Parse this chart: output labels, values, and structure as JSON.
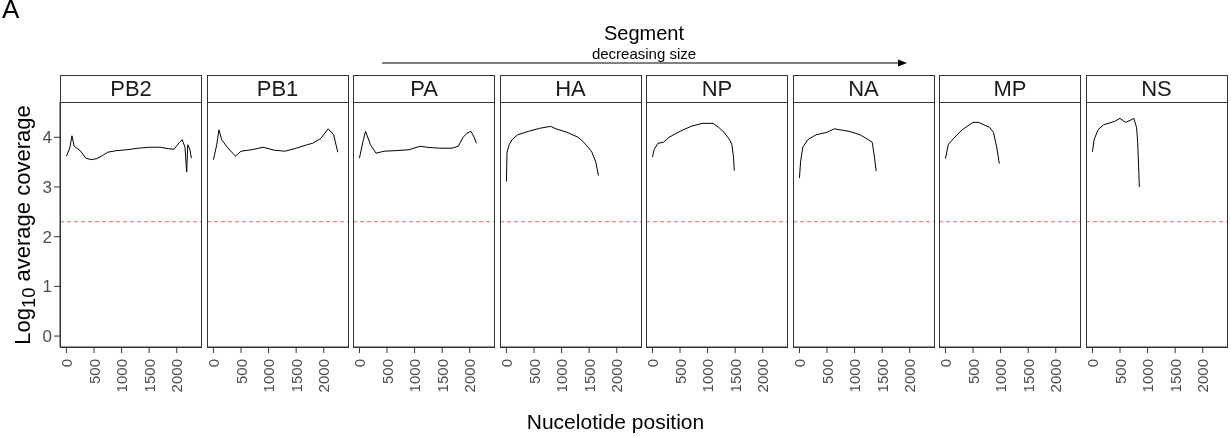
{
  "chart_data": [
    {
      "type": "line",
      "title": "PB2",
      "ylabel": "Log$_{10}$ average coverage",
      "annotations": [
        "A",
        "Segment",
        "decreasing size"
      ],
      "x": [
        0,
        60,
        100,
        140,
        250,
        350,
        450,
        550,
        650,
        750,
        900,
        1100,
        1300,
        1500,
        1700,
        1850,
        1950,
        2050,
        2100,
        2150,
        2180,
        2200,
        2240,
        2265
      ],
      "values": [
        3.62,
        3.78,
        4.03,
        3.82,
        3.73,
        3.58,
        3.55,
        3.57,
        3.63,
        3.7,
        3.73,
        3.75,
        3.78,
        3.8,
        3.8,
        3.77,
        3.76,
        3.9,
        3.95,
        3.8,
        3.3,
        3.85,
        3.75,
        3.58
      ],
      "color": "#000000",
      "xlim": [
        -117,
        2458
      ],
      "ylim": [
        -0.22,
        4.71
      ],
      "xticks": [
        0,
        500,
        1000,
        1500,
        2000
      ],
      "yticks": [
        0,
        1,
        2,
        3,
        4
      ],
      "ref_lines": [
        {
          "axis": "y",
          "value": 2.3,
          "color": "#e8696b",
          "line_style": "dashed"
        }
      ]
    },
    {
      "type": "line",
      "title": "PB1",
      "x": [
        0,
        60,
        100,
        150,
        250,
        400,
        500,
        700,
        900,
        1100,
        1300,
        1500,
        1700,
        1800,
        1950,
        2080,
        2180,
        2254
      ],
      "values": [
        3.55,
        3.85,
        4.15,
        3.95,
        3.8,
        3.62,
        3.72,
        3.75,
        3.8,
        3.74,
        3.72,
        3.78,
        3.85,
        3.88,
        3.98,
        4.17,
        4.05,
        3.7
      ],
      "color": "#000000",
      "xlim": [
        -117,
        2458
      ],
      "ylim": [
        -0.22,
        4.71
      ],
      "xticks": [
        0,
        500,
        1000,
        1500,
        2000
      ],
      "yticks": [
        0,
        1,
        2,
        3,
        4
      ],
      "tick_labels": "x",
      "ref_lines": [
        {
          "axis": "y",
          "value": 2.3,
          "color": "#e8696b",
          "line_style": "dashed"
        }
      ]
    },
    {
      "type": "line",
      "title": "PA",
      "x": [
        0,
        60,
        110,
        200,
        300,
        450,
        643,
        900,
        1100,
        1218,
        1450,
        1678,
        1793,
        1879,
        1950,
        2022,
        2080,
        2121
      ],
      "values": [
        3.58,
        3.9,
        4.12,
        3.85,
        3.68,
        3.72,
        3.73,
        3.75,
        3.82,
        3.8,
        3.78,
        3.78,
        3.82,
        4.0,
        4.08,
        4.12,
        4.0,
        3.88
      ],
      "color": "#000000",
      "xlim": [
        -117,
        2458
      ],
      "ylim": [
        -0.22,
        4.71
      ],
      "xticks": [
        0,
        500,
        1000,
        1500,
        2000
      ],
      "yticks": [
        0,
        1,
        2,
        3,
        4
      ],
      "tick_labels": "x",
      "ref_lines": [
        {
          "axis": "y",
          "value": 2.3,
          "color": "#e8696b",
          "line_style": "dashed"
        }
      ]
    },
    {
      "type": "line",
      "title": "HA",
      "xlabel": "Nucelotide position",
      "x": [
        0,
        10,
        50,
        100,
        200,
        400,
        600,
        800,
        900,
        1100,
        1300,
        1400,
        1480,
        1550,
        1620,
        1668
      ],
      "values": [
        3.11,
        3.7,
        3.85,
        3.95,
        4.05,
        4.12,
        4.18,
        4.22,
        4.17,
        4.1,
        4.0,
        3.9,
        3.8,
        3.7,
        3.5,
        3.23
      ],
      "color": "#000000",
      "xlim": [
        -117,
        2458
      ],
      "ylim": [
        -0.22,
        4.71
      ],
      "xticks": [
        0,
        500,
        1000,
        1500,
        2000
      ],
      "yticks": [
        0,
        1,
        2,
        3,
        4
      ],
      "tick_labels": "x",
      "ref_lines": [
        {
          "axis": "y",
          "value": 2.3,
          "color": "#e8696b",
          "line_style": "dashed"
        }
      ]
    },
    {
      "type": "line",
      "title": "NP",
      "x": [
        0,
        30,
        100,
        200,
        300,
        500,
        700,
        900,
        1100,
        1200,
        1300,
        1400,
        1440,
        1470,
        1484
      ],
      "values": [
        3.6,
        3.75,
        3.88,
        3.9,
        4.0,
        4.12,
        4.22,
        4.28,
        4.28,
        4.2,
        4.1,
        3.95,
        3.85,
        3.6,
        3.33
      ],
      "color": "#000000",
      "xlim": [
        -117,
        2458
      ],
      "ylim": [
        -0.22,
        4.71
      ],
      "xticks": [
        0,
        500,
        1000,
        1500,
        2000
      ],
      "yticks": [
        0,
        1,
        2,
        3,
        4
      ],
      "tick_labels": "x",
      "ref_lines": [
        {
          "axis": "y",
          "value": 2.3,
          "color": "#e8696b",
          "line_style": "dashed"
        }
      ]
    },
    {
      "type": "line",
      "title": "NA",
      "x": [
        0,
        20,
        60,
        150,
        300,
        500,
        630,
        900,
        1100,
        1250,
        1320,
        1360,
        1391
      ],
      "values": [
        3.18,
        3.5,
        3.8,
        3.95,
        4.05,
        4.1,
        4.17,
        4.12,
        4.05,
        3.95,
        3.9,
        3.6,
        3.32
      ],
      "color": "#000000",
      "xlim": [
        -117,
        2458
      ],
      "ylim": [
        -0.22,
        4.71
      ],
      "xticks": [
        0,
        500,
        1000,
        1500,
        2000
      ],
      "yticks": [
        0,
        1,
        2,
        3,
        4
      ],
      "tick_labels": "x",
      "ref_lines": [
        {
          "axis": "y",
          "value": 2.3,
          "color": "#e8696b",
          "line_style": "dashed"
        }
      ]
    },
    {
      "type": "line",
      "title": "MP",
      "x": [
        0,
        50,
        150,
        300,
        500,
        600,
        800,
        870,
        930,
        977
      ],
      "values": [
        3.57,
        3.85,
        3.98,
        4.15,
        4.3,
        4.3,
        4.2,
        4.1,
        3.8,
        3.47
      ],
      "color": "#000000",
      "xlim": [
        -117,
        2458
      ],
      "ylim": [
        -0.22,
        4.71
      ],
      "xticks": [
        0,
        500,
        1000,
        1500,
        2000
      ],
      "yticks": [
        0,
        1,
        2,
        3,
        4
      ],
      "tick_labels": "x",
      "ref_lines": [
        {
          "axis": "y",
          "value": 2.3,
          "color": "#e8696b",
          "line_style": "dashed"
        }
      ]
    },
    {
      "type": "line",
      "title": "NS",
      "x": [
        0,
        30,
        100,
        200,
        400,
        500,
        600,
        700,
        750,
        800,
        820,
        851
      ],
      "values": [
        3.71,
        3.95,
        4.15,
        4.25,
        4.32,
        4.38,
        4.3,
        4.35,
        4.38,
        4.2,
        3.9,
        3.0
      ],
      "color": "#000000",
      "xlim": [
        -117,
        2458
      ],
      "ylim": [
        -0.22,
        4.71
      ],
      "xticks": [
        0,
        500,
        1000,
        1500,
        2000
      ],
      "yticks": [
        0,
        1,
        2,
        3,
        4
      ],
      "tick_labels": "x",
      "ref_lines": [
        {
          "axis": "y",
          "value": 2.3,
          "color": "#e8696b",
          "line_style": "dashed"
        }
      ]
    }
  ]
}
